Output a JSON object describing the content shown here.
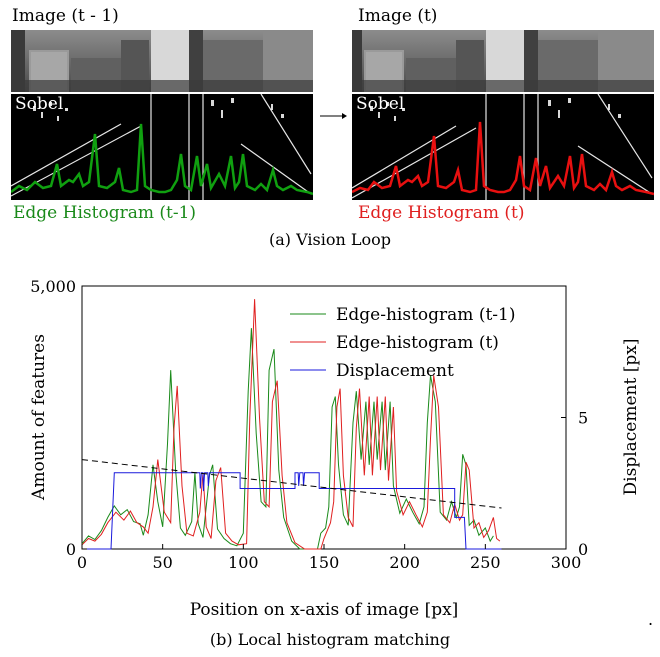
{
  "figure": {
    "panel_a": {
      "left_image_title": "Image (t - 1)",
      "right_image_title": "Image (t)",
      "left_sobel_label": "Sobel",
      "right_sobel_label": "Sobel",
      "left_hist_caption": "Edge Histogram (t-1)",
      "right_hist_caption": "Edge Histogram (t)",
      "left_hist_color": "#10a010",
      "right_hist_color": "#e81010",
      "caption": "(a) Vision Loop"
    },
    "panel_b": {
      "caption": "(b) Local histogram matching",
      "trailing_mark": "."
    }
  },
  "chart_data": {
    "type": "line",
    "xlabel": "Position on x-axis of image [px]",
    "ylabel": "Amount of features",
    "y2label": "Displacement [px]",
    "xlim": [
      0,
      300
    ],
    "ylim": [
      0,
      5000
    ],
    "y2lim": [
      0,
      10
    ],
    "xticks": [
      0,
      50,
      100,
      150,
      200,
      250,
      300
    ],
    "xtick_labels": [
      "0",
      "50",
      "100",
      "150",
      "200",
      "250",
      "300"
    ],
    "yticks": [
      0,
      5000
    ],
    "ytick_labels": [
      "0",
      "5,000"
    ],
    "y2ticks": [
      0,
      5
    ],
    "y2tick_labels": [
      "0",
      "5"
    ],
    "legend_position": "top-right",
    "series": [
      {
        "name": "Edge-histogram (t-1)",
        "color": "#1a8a1a",
        "axis": "left",
        "points": [
          [
            0,
            100
          ],
          [
            4,
            250
          ],
          [
            8,
            180
          ],
          [
            12,
            350
          ],
          [
            16,
            600
          ],
          [
            20,
            820
          ],
          [
            24,
            650
          ],
          [
            28,
            750
          ],
          [
            32,
            520
          ],
          [
            36,
            480
          ],
          [
            38,
            260
          ],
          [
            41,
            650
          ],
          [
            44,
            1600
          ],
          [
            47,
            900
          ],
          [
            50,
            420
          ],
          [
            53,
            2000
          ],
          [
            55,
            3400
          ],
          [
            58,
            1500
          ],
          [
            61,
            400
          ],
          [
            64,
            260
          ],
          [
            68,
            520
          ],
          [
            70,
            1450
          ],
          [
            72,
            480
          ],
          [
            75,
            220
          ],
          [
            79,
            1400
          ],
          [
            81,
            1600
          ],
          [
            84,
            380
          ],
          [
            88,
            200
          ],
          [
            92,
            100
          ],
          [
            96,
            60
          ],
          [
            100,
            300
          ],
          [
            103,
            3000
          ],
          [
            105,
            4200
          ],
          [
            108,
            2200
          ],
          [
            111,
            900
          ],
          [
            114,
            800
          ],
          [
            116,
            3400
          ],
          [
            119,
            3800
          ],
          [
            122,
            1500
          ],
          [
            125,
            600
          ],
          [
            130,
            150
          ],
          [
            135,
            0
          ],
          [
            140,
            0
          ],
          [
            146,
            0
          ],
          [
            148,
            300
          ],
          [
            151,
            400
          ],
          [
            153,
            800
          ],
          [
            155,
            2700
          ],
          [
            157,
            2900
          ],
          [
            159,
            1600
          ],
          [
            162,
            650
          ],
          [
            165,
            450
          ],
          [
            168,
            2400
          ],
          [
            170,
            3000
          ],
          [
            173,
            1700
          ],
          [
            176,
            2800
          ],
          [
            178,
            1600
          ],
          [
            181,
            2800
          ],
          [
            183,
            1700
          ],
          [
            186,
            2800
          ],
          [
            188,
            1500
          ],
          [
            191,
            2800
          ],
          [
            193,
            1200
          ],
          [
            197,
            680
          ],
          [
            201,
            950
          ],
          [
            205,
            700
          ],
          [
            209,
            480
          ],
          [
            212,
            800
          ],
          [
            214,
            2400
          ],
          [
            216,
            3300
          ],
          [
            219,
            2800
          ],
          [
            222,
            700
          ],
          [
            226,
            550
          ],
          [
            229,
            900
          ],
          [
            232,
            600
          ],
          [
            234,
            800
          ],
          [
            236,
            1800
          ],
          [
            238,
            1600
          ],
          [
            240,
            450
          ],
          [
            243,
            550
          ],
          [
            246,
            260
          ],
          [
            250,
            400
          ],
          [
            253,
            150
          ],
          [
            255,
            250
          ]
        ]
      },
      {
        "name": "Edge-histogram (t)",
        "color": "#e02020",
        "axis": "left",
        "points": [
          [
            0,
            80
          ],
          [
            4,
            200
          ],
          [
            8,
            150
          ],
          [
            12,
            280
          ],
          [
            16,
            500
          ],
          [
            21,
            700
          ],
          [
            26,
            550
          ],
          [
            30,
            720
          ],
          [
            34,
            500
          ],
          [
            38,
            420
          ],
          [
            41,
            300
          ],
          [
            44,
            800
          ],
          [
            47,
            1700
          ],
          [
            51,
            700
          ],
          [
            55,
            500
          ],
          [
            57,
            2300
          ],
          [
            59,
            3100
          ],
          [
            62,
            1200
          ],
          [
            65,
            300
          ],
          [
            69,
            250
          ],
          [
            73,
            700
          ],
          [
            75,
            1450
          ],
          [
            77,
            420
          ],
          [
            80,
            200
          ],
          [
            83,
            1300
          ],
          [
            86,
            1550
          ],
          [
            89,
            300
          ],
          [
            93,
            150
          ],
          [
            97,
            80
          ],
          [
            102,
            100
          ],
          [
            104,
            2500
          ],
          [
            107,
            4750
          ],
          [
            110,
            2500
          ],
          [
            113,
            900
          ],
          [
            116,
            800
          ],
          [
            118,
            2800
          ],
          [
            121,
            3200
          ],
          [
            124,
            1400
          ],
          [
            127,
            500
          ],
          [
            132,
            120
          ],
          [
            138,
            0
          ],
          [
            144,
            0
          ],
          [
            148,
            0
          ],
          [
            150,
            200
          ],
          [
            154,
            500
          ],
          [
            156,
            900
          ],
          [
            158,
            2700
          ],
          [
            160,
            3050
          ],
          [
            162,
            1400
          ],
          [
            165,
            600
          ],
          [
            168,
            420
          ],
          [
            170,
            2300
          ],
          [
            172,
            3050
          ],
          [
            175,
            1400
          ],
          [
            178,
            2900
          ],
          [
            180,
            1400
          ],
          [
            183,
            2900
          ],
          [
            185,
            1500
          ],
          [
            188,
            2900
          ],
          [
            190,
            1300
          ],
          [
            193,
            2700
          ],
          [
            195,
            1100
          ],
          [
            199,
            650
          ],
          [
            203,
            900
          ],
          [
            207,
            650
          ],
          [
            211,
            420
          ],
          [
            214,
            700
          ],
          [
            216,
            2100
          ],
          [
            218,
            3300
          ],
          [
            221,
            2700
          ],
          [
            224,
            650
          ],
          [
            228,
            500
          ],
          [
            231,
            850
          ],
          [
            234,
            550
          ],
          [
            236,
            650
          ],
          [
            238,
            1650
          ],
          [
            240,
            1500
          ],
          [
            243,
            400
          ],
          [
            246,
            500
          ],
          [
            249,
            220
          ],
          [
            252,
            350
          ],
          [
            255,
            600
          ],
          [
            257,
            200
          ],
          [
            259,
            150
          ]
        ]
      },
      {
        "name": "Displacement",
        "color": "#1a1adc",
        "axis": "right",
        "points": [
          [
            0,
            0
          ],
          [
            18,
            0
          ],
          [
            20,
            2.9
          ],
          [
            73,
            2.9
          ],
          [
            73.3,
            2.3
          ],
          [
            74,
            2.9
          ],
          [
            75,
            2.9
          ],
          [
            75.3,
            2.2
          ],
          [
            76,
            2.9
          ],
          [
            78,
            2.9
          ],
          [
            78.3,
            2.4
          ],
          [
            79,
            2.9
          ],
          [
            98,
            2.9
          ],
          [
            98,
            2.3
          ],
          [
            132,
            2.3
          ],
          [
            132,
            2.9
          ],
          [
            134,
            2.9
          ],
          [
            134.3,
            2.4
          ],
          [
            135,
            2.9
          ],
          [
            137,
            2.9
          ],
          [
            137.3,
            2.4
          ],
          [
            138,
            2.9
          ],
          [
            147,
            2.9
          ],
          [
            147,
            2.3
          ],
          [
            231,
            2.3
          ],
          [
            231,
            1.2
          ],
          [
            237,
            1.2
          ],
          [
            238,
            0
          ],
          [
            260,
            0
          ]
        ]
      },
      {
        "name": "",
        "style": "dashed",
        "color": "#000000",
        "axis": "left",
        "points": [
          [
            0,
            1700
          ],
          [
            260,
            780
          ]
        ]
      }
    ]
  }
}
